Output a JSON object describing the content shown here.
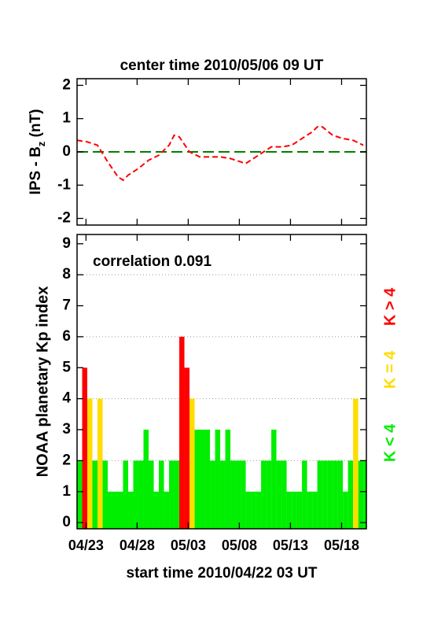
{
  "chart_data": [
    {
      "type": "line",
      "title": "center time 2010/05/06 09 UT",
      "ylabel": [
        "IPS - B",
        "z",
        " (nT)"
      ],
      "x": [
        0,
        1,
        2,
        3,
        4,
        4.5,
        5,
        6,
        7,
        8,
        9,
        9.5,
        10,
        11,
        12,
        13,
        14,
        15,
        16,
        16.5,
        17,
        18,
        19,
        20,
        21,
        22,
        23,
        23.5,
        24,
        25,
        26,
        27,
        28
      ],
      "values": [
        0.35,
        0.3,
        0.2,
        -0.3,
        -0.75,
        -0.85,
        -0.7,
        -0.5,
        -0.25,
        -0.1,
        0.2,
        0.5,
        0.45,
        0.0,
        -0.15,
        -0.15,
        -0.15,
        -0.2,
        -0.3,
        -0.35,
        -0.25,
        -0.05,
        0.15,
        0.15,
        0.2,
        0.4,
        0.6,
        0.75,
        0.75,
        0.5,
        0.4,
        0.35,
        0.2
      ],
      "color": "#ff0000",
      "line_style": "dashed",
      "reference_line": {
        "value": 0,
        "color": "#008000"
      },
      "xlim": [
        0,
        28.3
      ],
      "xticks": [
        0.875,
        5.875,
        10.875,
        15.875,
        20.875,
        25.875
      ],
      "ylim": [
        -2.2,
        2.2
      ],
      "yticks": [
        -2,
        -1,
        0,
        1,
        2
      ]
    },
    {
      "type": "bar",
      "ylabel": "NOAA planetary Kp index",
      "xlabel": "start time 2010/04/22 03 UT",
      "annotation": "correlation 0.091",
      "x": [
        0,
        0.5,
        1,
        1.5,
        2,
        2.5,
        3,
        3.5,
        4,
        4.5,
        5,
        5.5,
        6,
        6.5,
        7,
        7.5,
        8,
        8.5,
        9,
        9.5,
        10,
        10.5,
        11,
        11.5,
        12,
        12.5,
        13,
        13.5,
        14,
        14.5,
        15,
        15.5,
        16,
        16.5,
        17,
        17.5,
        18,
        18.5,
        19,
        19.5,
        20,
        20.5,
        21,
        21.5,
        22,
        22.5,
        23,
        23.5,
        24,
        24.5,
        25,
        25.5,
        26,
        26.5,
        27,
        27.5,
        28
      ],
      "series": [
        {
          "name": "K < 4",
          "color": "#00ee00",
          "values": [
            2,
            null,
            null,
            2,
            null,
            2,
            1,
            1,
            1,
            2,
            1,
            2,
            2,
            3,
            2,
            1,
            2,
            1,
            2,
            2,
            null,
            null,
            null,
            3,
            3,
            3,
            2,
            3,
            2,
            3,
            2,
            2,
            2,
            1,
            1,
            1,
            2,
            2,
            3,
            2,
            2,
            1,
            1,
            1,
            2,
            1,
            1,
            2,
            2,
            2,
            2,
            2,
            1,
            2,
            null,
            2,
            2
          ]
        },
        {
          "name": "K = 4",
          "color": "#ffdd00",
          "values": [
            null,
            null,
            4,
            null,
            4,
            null,
            null,
            null,
            null,
            null,
            null,
            null,
            null,
            null,
            null,
            null,
            null,
            null,
            null,
            null,
            null,
            null,
            4,
            null,
            null,
            null,
            null,
            null,
            null,
            null,
            null,
            null,
            null,
            null,
            null,
            null,
            null,
            null,
            null,
            null,
            null,
            null,
            null,
            null,
            null,
            null,
            null,
            null,
            null,
            null,
            null,
            null,
            null,
            null,
            4,
            null,
            null
          ]
        },
        {
          "name": "K > 4",
          "color": "#ff0000",
          "values": [
            null,
            5,
            null,
            null,
            null,
            null,
            null,
            null,
            null,
            null,
            null,
            null,
            null,
            null,
            null,
            null,
            null,
            null,
            null,
            null,
            6,
            5,
            null,
            null,
            null,
            null,
            null,
            null,
            null,
            null,
            null,
            null,
            null,
            null,
            null,
            null,
            null,
            null,
            null,
            null,
            null,
            null,
            null,
            null,
            null,
            null,
            null,
            null,
            null,
            null,
            null,
            null,
            null,
            null,
            null,
            null,
            null
          ]
        }
      ],
      "xlim": [
        0,
        28.3
      ],
      "xticks": [
        {
          "value": 0.875,
          "label": "04/23"
        },
        {
          "value": 5.875,
          "label": "04/28"
        },
        {
          "value": 10.875,
          "label": "05/03"
        },
        {
          "value": 15.875,
          "label": "05/08"
        },
        {
          "value": 20.875,
          "label": "05/13"
        },
        {
          "value": 25.875,
          "label": "05/18"
        }
      ],
      "ylim": [
        -0.2,
        9.3
      ],
      "yticks": [
        0,
        1,
        2,
        3,
        4,
        5,
        6,
        7,
        8,
        9
      ],
      "grid_values": [
        2,
        4,
        6,
        8
      ]
    }
  ]
}
